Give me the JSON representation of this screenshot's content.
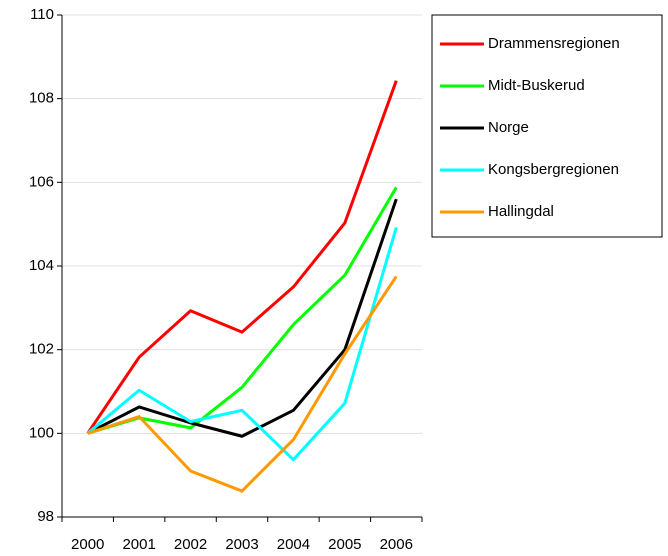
{
  "chart_data": {
    "type": "line",
    "categories": [
      "2000",
      "2001",
      "2002",
      "2003",
      "2004",
      "2005",
      "2006"
    ],
    "series": [
      {
        "name": "Drammensregionen",
        "color": "#ff0000",
        "values": [
          100,
          101.82,
          102.93,
          102.42,
          103.5,
          105.03,
          108.43
        ]
      },
      {
        "name": "Midt-Buskerud",
        "color": "#00ff00",
        "values": [
          100,
          100.37,
          100.13,
          101.1,
          102.6,
          103.78,
          105.88
        ]
      },
      {
        "name": "Norge",
        "color": "#000000",
        "values": [
          100,
          100.63,
          100.25,
          99.93,
          100.55,
          102.0,
          105.6
        ]
      },
      {
        "name": "Kongsbergregionen",
        "color": "#00ffff",
        "values": [
          100,
          101.03,
          100.28,
          100.55,
          99.37,
          100.72,
          104.92
        ]
      },
      {
        "name": "Hallingdal",
        "color": "#ff9900",
        "values": [
          100,
          100.4,
          99.1,
          98.62,
          99.85,
          101.9,
          103.75
        ]
      }
    ],
    "ylim": [
      98,
      110
    ],
    "yticks": [
      98,
      100,
      102,
      104,
      106,
      108,
      110
    ],
    "grid": true,
    "legend": "right"
  }
}
